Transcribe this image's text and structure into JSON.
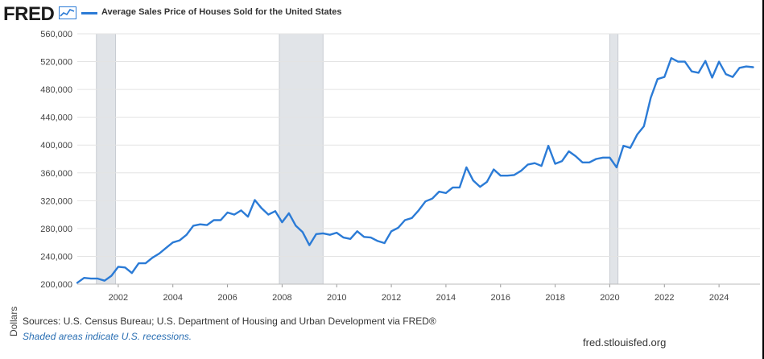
{
  "header": {
    "logo_text": "FRED",
    "series_label": "Average Sales Price of Houses Sold for the United States",
    "series_color": "#2b7bd6"
  },
  "footer": {
    "sources": "Sources: U.S. Census Bureau; U.S. Department of Housing and Urban Development via FRED®",
    "note": "Shaded areas indicate U.S. recessions.",
    "url": "fred.stlouisfed.org"
  },
  "chart_data": {
    "type": "line",
    "title": "Average Sales Price of Houses Sold for the United States",
    "ylabel": "Dollars",
    "xlabel": "",
    "xlim": [
      2000.5,
      2025.5
    ],
    "ylim": [
      200000,
      560000
    ],
    "yticks": [
      200000,
      240000,
      280000,
      320000,
      360000,
      400000,
      440000,
      480000,
      520000,
      560000
    ],
    "ytick_labels": [
      "200,000",
      "240,000",
      "280,000",
      "320,000",
      "360,000",
      "400,000",
      "440,000",
      "480,000",
      "520,000",
      "560,000"
    ],
    "xticks": [
      2002,
      2004,
      2006,
      2008,
      2010,
      2012,
      2014,
      2016,
      2018,
      2020,
      2022,
      2024
    ],
    "xtick_labels": [
      "2002",
      "2004",
      "2006",
      "2008",
      "2010",
      "2012",
      "2014",
      "2016",
      "2018",
      "2020",
      "2022",
      "2024"
    ],
    "grid": true,
    "recessions": [
      [
        2001.2,
        2001.9
      ],
      [
        2007.9,
        2009.5
      ],
      [
        2020.0,
        2020.3
      ]
    ],
    "recession_color": "#e1e4e8",
    "series": [
      {
        "name": "Average Sales Price of Houses Sold for the United States",
        "color": "#2b7bd6",
        "x": [
          2000.5,
          2000.75,
          2001.0,
          2001.25,
          2001.5,
          2001.75,
          2002.0,
          2002.25,
          2002.5,
          2002.75,
          2003.0,
          2003.25,
          2003.5,
          2003.75,
          2004.0,
          2004.25,
          2004.5,
          2004.75,
          2005.0,
          2005.25,
          2005.5,
          2005.75,
          2006.0,
          2006.25,
          2006.5,
          2006.75,
          2007.0,
          2007.25,
          2007.5,
          2007.75,
          2008.0,
          2008.25,
          2008.5,
          2008.75,
          2009.0,
          2009.25,
          2009.5,
          2009.75,
          2010.0,
          2010.25,
          2010.5,
          2010.75,
          2011.0,
          2011.25,
          2011.5,
          2011.75,
          2012.0,
          2012.25,
          2012.5,
          2012.75,
          2013.0,
          2013.25,
          2013.5,
          2013.75,
          2014.0,
          2014.25,
          2014.5,
          2014.75,
          2015.0,
          2015.25,
          2015.5,
          2015.75,
          2016.0,
          2016.25,
          2016.5,
          2016.75,
          2017.0,
          2017.25,
          2017.5,
          2017.75,
          2018.0,
          2018.25,
          2018.5,
          2018.75,
          2019.0,
          2019.25,
          2019.5,
          2019.75,
          2020.0,
          2020.25,
          2020.5,
          2020.75,
          2021.0,
          2021.25,
          2021.5,
          2021.75,
          2022.0,
          2022.25,
          2022.5,
          2022.75,
          2023.0,
          2023.25,
          2023.5,
          2023.75,
          2024.0,
          2024.25,
          2024.5,
          2024.75,
          2025.0,
          2025.25
        ],
        "values": [
          202000,
          209000,
          208000,
          208000,
          205000,
          212000,
          225000,
          224000,
          216000,
          230000,
          230000,
          238000,
          244000,
          252000,
          260000,
          263000,
          271000,
          284000,
          286000,
          285000,
          292000,
          292000,
          303000,
          300000,
          306000,
          297000,
          321000,
          309000,
          300000,
          305000,
          289000,
          302000,
          284000,
          275000,
          256000,
          272000,
          273000,
          271000,
          274000,
          267000,
          265000,
          276000,
          268000,
          267000,
          262000,
          259000,
          276000,
          281000,
          292000,
          295000,
          306000,
          319000,
          323000,
          333000,
          331000,
          339000,
          339000,
          368000,
          349000,
          340000,
          347000,
          365000,
          356000,
          356000,
          357000,
          363000,
          372000,
          374000,
          370000,
          399000,
          373000,
          377000,
          391000,
          384000,
          375000,
          375000,
          380000,
          382000,
          382000,
          368000,
          399000,
          396000,
          415000,
          427000,
          468000,
          495000,
          498000,
          525000,
          520000,
          520000,
          506000,
          504000,
          521000,
          497000,
          520000,
          502000,
          498000,
          511000,
          513000,
          512000
        ]
      }
    ]
  }
}
